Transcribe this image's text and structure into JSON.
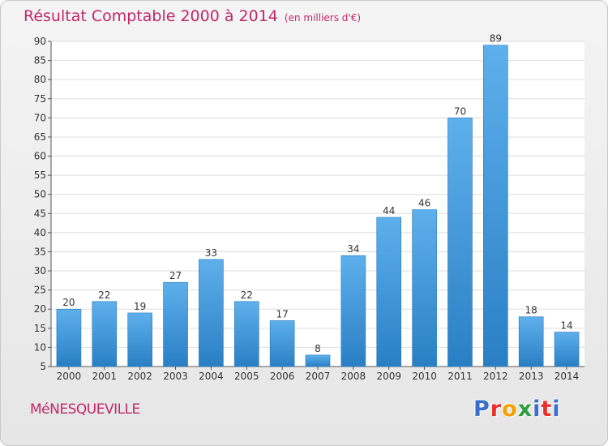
{
  "title": "Résultat Comptable 2000 à 2014",
  "subtitle": "(en milliers d'€)",
  "commune": "MéNESQUEVILLE",
  "logo": {
    "letters": [
      "P",
      "r",
      "o",
      "x",
      "i",
      "t",
      "i"
    ],
    "colors": [
      "#3a6fc8",
      "#e8312a",
      "#f5a000",
      "#2e9e3e",
      "#3a6fc8",
      "#e8312a",
      "#3a6fc8"
    ]
  },
  "colors": {
    "accent": "#c0286a",
    "bar_top": "#5eb0ec",
    "bar_bottom": "#2a7fc4"
  },
  "chart_data": {
    "type": "bar",
    "categories": [
      "2000",
      "2001",
      "2002",
      "2003",
      "2004",
      "2005",
      "2006",
      "2007",
      "2008",
      "2009",
      "2010",
      "2011",
      "2012",
      "2013",
      "2014"
    ],
    "values": [
      20,
      22,
      19,
      27,
      33,
      22,
      17,
      8,
      34,
      44,
      46,
      70,
      89,
      18,
      14
    ],
    "ylim": [
      5,
      90
    ],
    "yticks": [
      5,
      10,
      15,
      20,
      25,
      30,
      35,
      40,
      45,
      50,
      55,
      60,
      65,
      70,
      75,
      80,
      85,
      90
    ],
    "grid": true,
    "legend": "none"
  }
}
